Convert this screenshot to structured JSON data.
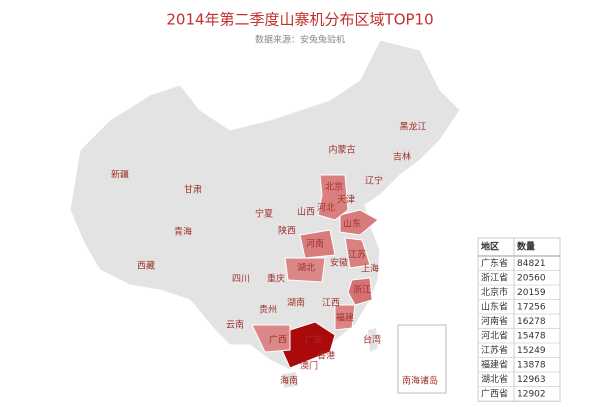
{
  "title": "2014年第二季度山寨机分布区域TOP10",
  "subtitle": "数据来源：安兔兔验机",
  "map": {
    "labels": [
      "黑龙江",
      "吉林",
      "辽宁",
      "内蒙古",
      "北京",
      "天津",
      "河北",
      "山西",
      "山东",
      "新疆",
      "甘肃",
      "宁夏",
      "青海",
      "陕西",
      "河南",
      "江苏",
      "安徽",
      "湖北",
      "上海",
      "西藏",
      "四川",
      "重庆",
      "浙江",
      "湖南",
      "江西",
      "贵州",
      "福建",
      "云南",
      "广西",
      "广东",
      "台湾",
      "香港",
      "澳门",
      "海南"
    ],
    "inset_label": "南海诸岛"
  },
  "table": {
    "headers": [
      "地区",
      "数量"
    ],
    "rows": [
      [
        "广东省",
        84821
      ],
      [
        "浙江省",
        20560
      ],
      [
        "北京市",
        20159
      ],
      [
        "山东省",
        17256
      ],
      [
        "河南省",
        16278
      ],
      [
        "河北省",
        15478
      ],
      [
        "江苏省",
        15249
      ],
      [
        "福建省",
        13878
      ],
      [
        "湖北省",
        12963
      ],
      [
        "广西省",
        12902
      ]
    ]
  }
}
